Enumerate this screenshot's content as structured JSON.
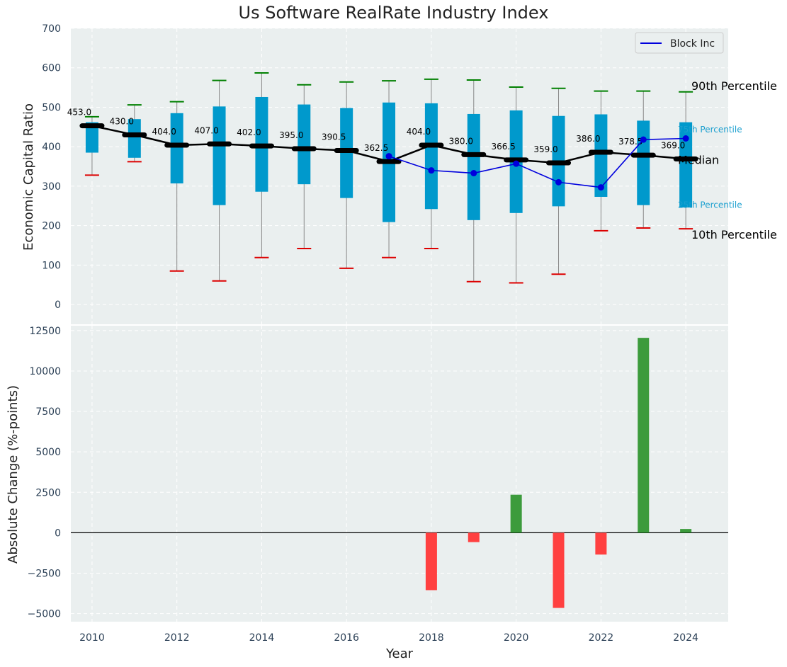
{
  "chart_data": [
    {
      "type": "box",
      "title": "Us Software RealRate Industry Index",
      "ylabel": "Economic Capital Ratio",
      "ylim": [
        -50,
        700
      ],
      "yticks": [
        0,
        100,
        200,
        300,
        400,
        500,
        600,
        700
      ],
      "grid": true,
      "legend_position": "top-right",
      "legend": [
        {
          "label": "Block Inc",
          "color": "#0000dd"
        }
      ],
      "years": [
        2010,
        2011,
        2012,
        2013,
        2014,
        2015,
        2016,
        2017,
        2018,
        2019,
        2020,
        2021,
        2022,
        2023,
        2024
      ],
      "p10": [
        328,
        362,
        85,
        60,
        119,
        142,
        92,
        119,
        142,
        58,
        55,
        77,
        187,
        194,
        192
      ],
      "p25": [
        385,
        372,
        307,
        252,
        286,
        305,
        270,
        209,
        242,
        214,
        232,
        249,
        273,
        252,
        246
      ],
      "median": [
        453.0,
        430.0,
        404.0,
        407.0,
        402.0,
        395.0,
        390.5,
        362.5,
        404.0,
        380.0,
        366.5,
        359.0,
        386.0,
        378.5,
        369.0
      ],
      "median_labels": [
        "453.0",
        "430.0",
        "404.0",
        "407.0",
        "402.0",
        "395.0",
        "390.5",
        "362.5",
        "404.0",
        "380.0",
        "366.5",
        "359.0",
        "386.0",
        "378.5",
        "369.0"
      ],
      "p75": [
        462,
        470,
        485,
        502,
        526,
        507,
        498,
        512,
        510,
        483,
        492,
        478,
        482,
        466,
        462
      ],
      "p90": [
        476,
        506,
        514,
        568,
        587,
        557,
        564,
        567,
        571,
        569,
        551,
        548,
        541,
        541,
        539
      ],
      "series": [
        {
          "name": "Block Inc",
          "color": "#0000dd",
          "x": [
            2017,
            2018,
            2019,
            2020,
            2021,
            2022,
            2023,
            2024
          ],
          "values": [
            376,
            340,
            333,
            357,
            310,
            297,
            418,
            421
          ]
        }
      ],
      "annotations": [
        {
          "text": "90th Percentile",
          "value": 553,
          "color": "#000000"
        },
        {
          "text": "75th Percentile",
          "value": 445,
          "color": "#1a9fcf"
        },
        {
          "text": "Median",
          "value": 365,
          "color": "#000000"
        },
        {
          "text": "25th Percentile",
          "value": 254,
          "color": "#1a9fcf"
        },
        {
          "text": "10th Percentile",
          "value": 176,
          "color": "#000000"
        }
      ],
      "colors": {
        "box": "#0099cc",
        "median_line": "#000000",
        "p90_cap": "#008000",
        "p10_cap": "#dd0000",
        "whisker": "#888888"
      }
    },
    {
      "type": "bar",
      "ylabel": "Absolute Change (%-points)",
      "xlabel": "Year",
      "ylim": [
        -5500,
        12800
      ],
      "yticks": [
        -5000,
        -2500,
        0,
        2500,
        5000,
        7500,
        10000,
        12500
      ],
      "ytick_labels": [
        "−5000",
        "−2500",
        "0",
        "2500",
        "5000",
        "7500",
        "10000",
        "12500"
      ],
      "xlim": [
        2009.5,
        2025
      ],
      "xticks": [
        2010,
        2012,
        2014,
        2016,
        2018,
        2020,
        2022,
        2024
      ],
      "grid": true,
      "x": [
        2018,
        2019,
        2020,
        2021,
        2022,
        2023,
        2024
      ],
      "values": [
        -3550,
        -580,
        2350,
        -4650,
        -1350,
        12050,
        230
      ],
      "colors": {
        "positive": "#3c9b3c",
        "negative": "#ff4040"
      }
    }
  ]
}
